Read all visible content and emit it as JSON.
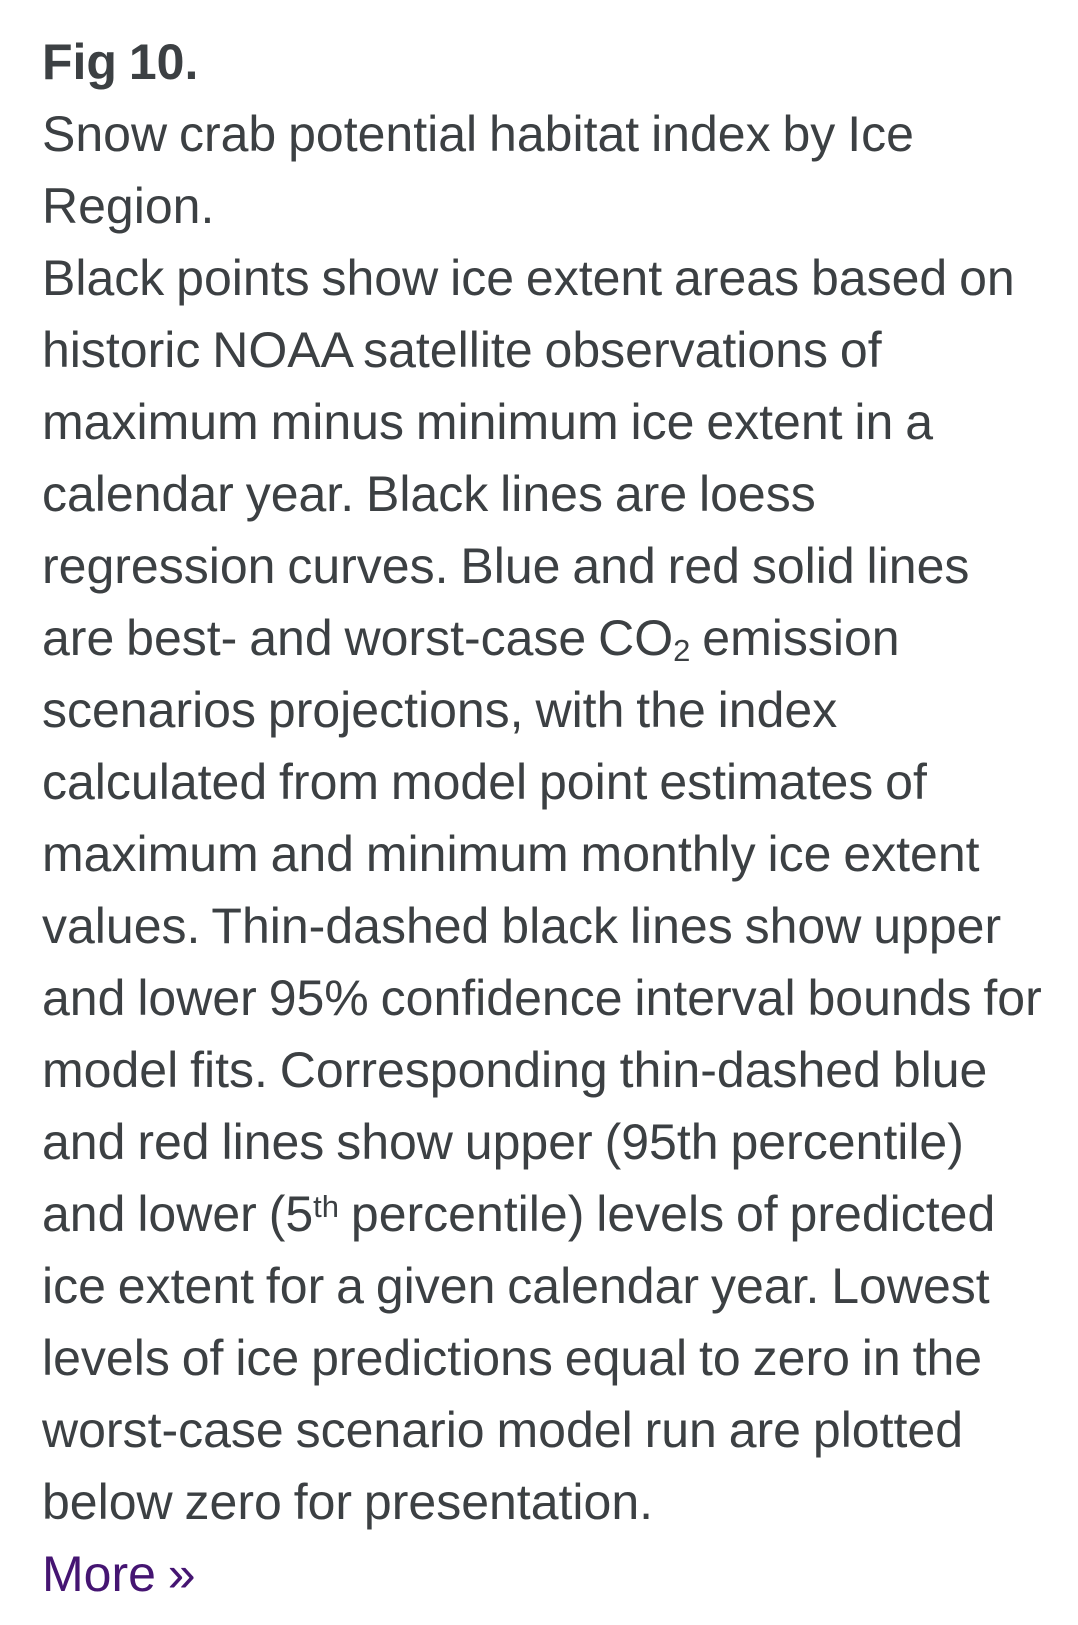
{
  "colors": {
    "text": "#3c4043",
    "link": "#451572",
    "bg": "#ffffff"
  },
  "figure_caption": {
    "label": "Fig 10.",
    "title": "Snow crab potential habitat index by Ice Region.",
    "description_segments": [
      {
        "text": "Black points show ice extent areas based on historic NOAA satellite observations of maximum minus minimum ice extent in a calendar year. Black lines are loess regression curves. Blue and red solid lines are best- and worst-case CO"
      },
      {
        "text": "2",
        "script": "sub"
      },
      {
        "text": " emission scenarios projections, with the index calculated from model point estimates of maximum and minimum monthly ice extent values. Thin-dashed black lines show upper and lower 95% confidence interval bounds for model fits. Corresponding thin-dashed blue and red lines show upper (95th percentile) and lower (5"
      },
      {
        "text": "th",
        "script": "sup"
      },
      {
        "text": " percentile) levels of predicted ice extent for a given calendar year. Lowest levels of ice predictions equal to zero in the worst-case scenario model run are plotted below zero for presentation."
      }
    ],
    "more_link": "More »"
  }
}
